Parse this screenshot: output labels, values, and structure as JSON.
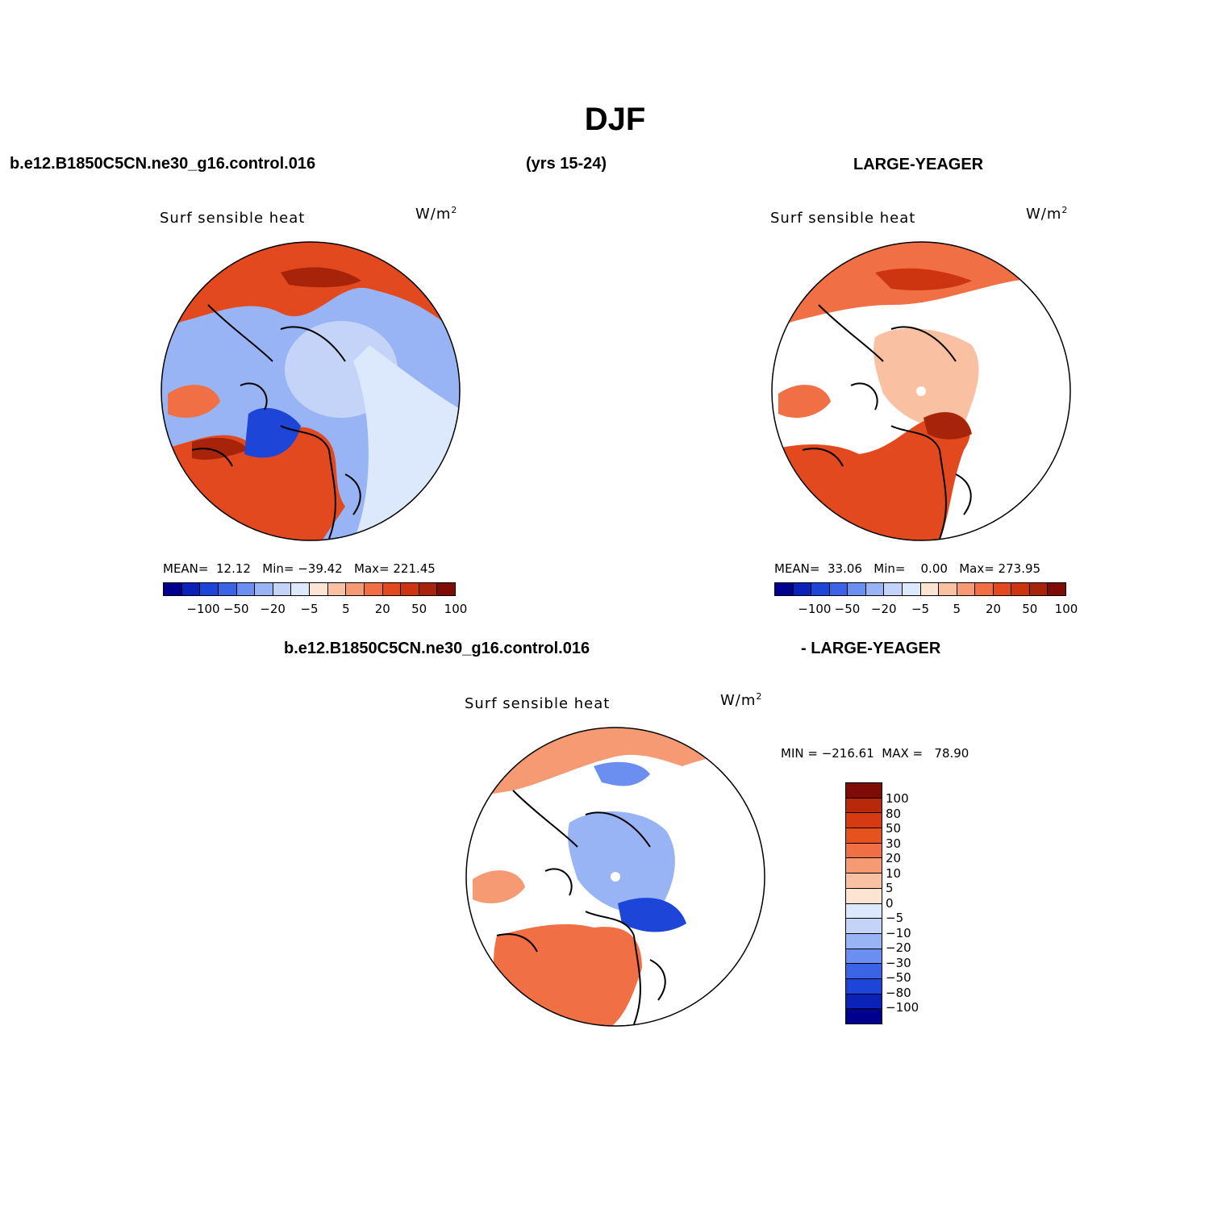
{
  "title": "DJF",
  "header": {
    "case_name": "b.e12.B1850C5CN.ne30_g16.control.016",
    "years": "(yrs 15-24)",
    "obs_name": "LARGE-YEAGER",
    "diff_case": "b.e12.B1850C5CN.ne30_g16.control.016",
    "diff_obs": "- LARGE-YEAGER"
  },
  "panels": {
    "model": {
      "variable": "Surf sensible heat",
      "units": "W/m",
      "units_exp": "2",
      "stats": "MEAN=  12.12   Min= −39.42   Max= 221.45"
    },
    "obs": {
      "variable": "Surf sensible heat",
      "units": "W/m",
      "units_exp": "2",
      "stats": "MEAN=  33.06   Min=    0.00   Max= 273.95"
    },
    "diff": {
      "variable": "Surf sensible heat",
      "units": "W/m",
      "units_exp": "2",
      "stats": "MIN = −216.61  MAX =   78.90"
    }
  },
  "colorbar_h": {
    "colors": [
      "#00008f",
      "#0a22b8",
      "#1d45d8",
      "#3a63e6",
      "#6b8ff0",
      "#98b4f5",
      "#c3d4f8",
      "#dce8fb",
      "#fde3d1",
      "#f9c1a1",
      "#f59a72",
      "#f06f44",
      "#e3491e",
      "#cd3410",
      "#a7240a",
      "#7e0b05"
    ],
    "ticks": [
      "−100",
      "−50",
      "−20",
      "−5",
      "5",
      "20",
      "50",
      "100"
    ]
  },
  "colorbar_v": {
    "colors": [
      "#7e0b05",
      "#b8280b",
      "#d63a12",
      "#e5521e",
      "#f06f44",
      "#f59a72",
      "#f9c1a1",
      "#fde3d1",
      "#dce8fb",
      "#c3d4f8",
      "#98b4f5",
      "#6b8ff0",
      "#3a63e6",
      "#1d45d8",
      "#0a22b8",
      "#00008f"
    ],
    "ticks": [
      "100",
      "80",
      "50",
      "30",
      "20",
      "10",
      "5",
      "0",
      "−5",
      "−10",
      "−20",
      "−30",
      "−50",
      "−80",
      "−100"
    ]
  },
  "colors": {
    "warm": "#e3491e",
    "warm_dark": "#a7240a",
    "warm_light": "#f59a72",
    "cool": "#98b4f5",
    "cool_dark": "#1d45d8",
    "cool_light": "#c3d4f8"
  }
}
